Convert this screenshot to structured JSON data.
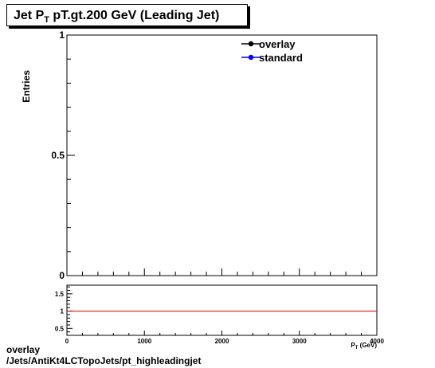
{
  "title": {
    "prefix": "Jet P",
    "subscript": "T",
    "suffix": " pT.gt.200 GeV (Leading Jet)"
  },
  "footer": {
    "line1": "overlay",
    "line2": "/Jets/AntiKt4LCTopoJets/pt_highleadingjet"
  },
  "chart_data": [
    {
      "type": "line",
      "title": "Jet P_T pT.gt.200 GeV (Leading Jet)",
      "xlabel": "",
      "ylabel": "Entries",
      "xlim": [
        0,
        4000
      ],
      "ylim": [
        0,
        1
      ],
      "yticks": [
        0,
        0.5,
        1
      ],
      "yticklabels": [
        "0",
        "0.5",
        "1"
      ],
      "legend": {
        "placement": "top-right",
        "entries": [
          {
            "name": "overlay",
            "color": "#000000",
            "marker": "circle"
          },
          {
            "name": "standard",
            "color": "#0000ff",
            "marker": "circle"
          }
        ]
      },
      "series": [
        {
          "name": "overlay",
          "color": "#000000",
          "x": [],
          "y": []
        },
        {
          "name": "standard",
          "color": "#0000ff",
          "x": [],
          "y": []
        }
      ]
    },
    {
      "type": "line",
      "title": "",
      "xlabel": "P_T (GeV)",
      "ylabel": "",
      "xlim": [
        0,
        4000
      ],
      "ylim": [
        0.3,
        1.75
      ],
      "xticks": [
        0,
        1000,
        2000,
        3000,
        4000
      ],
      "xticklabels": [
        "0",
        "1000",
        "2000",
        "3000",
        "4000"
      ],
      "yticks": [
        0.5,
        1,
        1.5
      ],
      "yticklabels": [
        "0.5",
        "1",
        "1.5"
      ],
      "reference_line": {
        "y": 1,
        "color": "#cc0000"
      },
      "series": []
    }
  ]
}
